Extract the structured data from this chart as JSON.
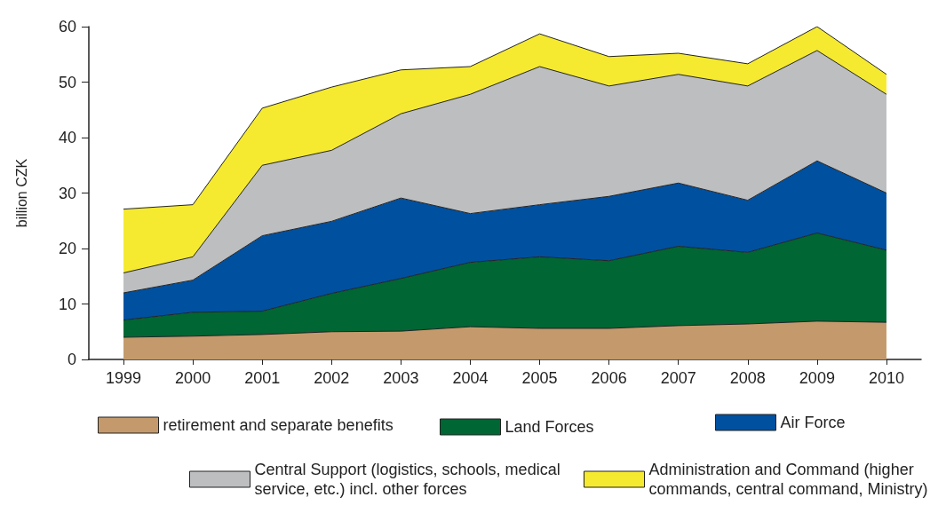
{
  "chart_data": {
    "type": "area",
    "stacked": true,
    "ylabel": "billion CZK",
    "categories": [
      "1999",
      "2000",
      "2001",
      "2002",
      "2003",
      "2004",
      "2005",
      "2006",
      "2007",
      "2008",
      "2009",
      "2010"
    ],
    "ylim": [
      0,
      60
    ],
    "yticks": [
      0,
      10,
      20,
      30,
      40,
      50,
      60
    ],
    "grid": false,
    "legend": "bottom",
    "series": [
      {
        "name": "retirement and separate benefits",
        "color": "#c49a6c",
        "values": [
          4.0,
          4.2,
          4.5,
          5.0,
          5.1,
          5.9,
          5.6,
          5.6,
          6.1,
          6.4,
          6.9,
          6.7
        ]
      },
      {
        "name": "Land Forces",
        "color": "#006633",
        "values": [
          3.1,
          4.3,
          4.2,
          6.9,
          9.5,
          11.6,
          12.9,
          12.2,
          14.3,
          12.9,
          15.9,
          13.0
        ]
      },
      {
        "name": "Air Force",
        "color": "#0050a0",
        "values": [
          4.9,
          5.8,
          13.6,
          13.0,
          14.5,
          8.8,
          9.4,
          11.6,
          11.4,
          9.4,
          13.0,
          10.3
        ]
      },
      {
        "name": "Central Support (logistics, schools, medical service, etc.) incl. other forces",
        "color": "#bcbec0",
        "values": [
          3.6,
          4.2,
          12.7,
          12.8,
          15.2,
          21.5,
          24.9,
          19.9,
          19.6,
          20.6,
          19.9,
          17.8
        ]
      },
      {
        "name": "Administration and Command (higher commands, central command, Ministry)",
        "color": "#f5ea30",
        "values": [
          11.5,
          9.4,
          10.3,
          11.4,
          7.9,
          5.0,
          5.9,
          5.3,
          3.8,
          4.0,
          4.3,
          3.6
        ]
      }
    ]
  }
}
